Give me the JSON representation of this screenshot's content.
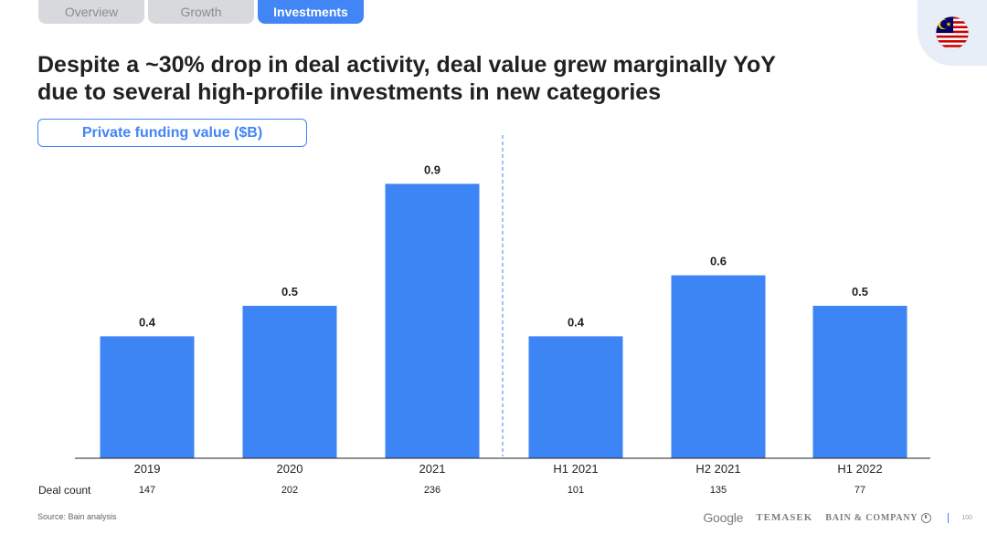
{
  "tabs": [
    {
      "label": "Overview",
      "active": false
    },
    {
      "label": "Growth",
      "active": false
    },
    {
      "label": "Investments",
      "active": true
    }
  ],
  "flag_icon": "malaysia-flag-icon",
  "title_line1": "Despite a ~30% drop in deal activity, deal value grew marginally YoY",
  "title_line2": "due to several high-profile investments in new categories",
  "chart_label": "Private funding value ($B)",
  "deal_count_label": "Deal count",
  "source": "Source: Bain analysis",
  "footer": {
    "google": "Google",
    "temasek": "TEMASEK",
    "bain": "BAIN & COMPANY",
    "page": "100"
  },
  "colors": {
    "accent": "#4285f4",
    "bar": "#3d85f5",
    "text": "#202124"
  },
  "chart_data": {
    "type": "bar",
    "categories": [
      "2019",
      "2020",
      "2021",
      "H1 2021",
      "H2 2021",
      "H1 2022"
    ],
    "values": [
      0.4,
      0.5,
      0.9,
      0.4,
      0.6,
      0.5
    ],
    "value_labels": [
      "0.4",
      "0.5",
      "0.9",
      "0.4",
      "0.6",
      "0.5"
    ],
    "deal_counts": [
      "147",
      "202",
      "236",
      "101",
      "135",
      "77"
    ],
    "divider_after_index": 2,
    "ylabel": "Private funding value ($B)",
    "grid": false
  }
}
